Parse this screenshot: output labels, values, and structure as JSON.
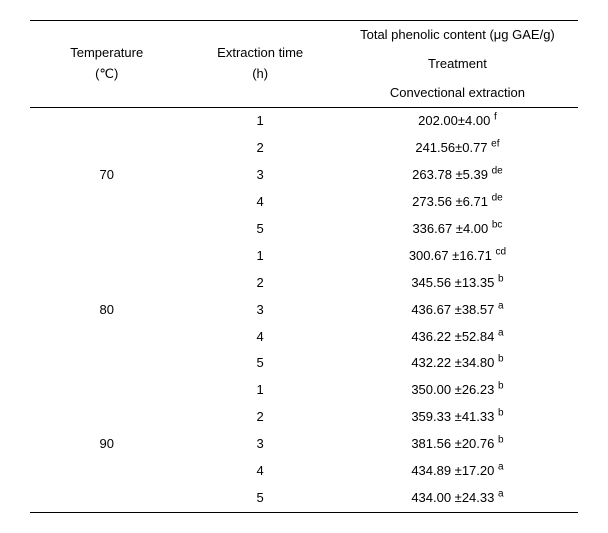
{
  "header": {
    "temp_label_line1": "Temperature",
    "temp_label_line2": "(℃)",
    "time_label_line1": "Extraction time",
    "time_label_line2": "(h)",
    "tpc_line1": "Total phenolic content (μg GAE/g)",
    "tpc_line2": "Treatment",
    "tpc_line3": "Convectional extraction"
  },
  "groups": [
    {
      "temp": "70",
      "rows": [
        {
          "time": "1",
          "value": "202.00±4.00",
          "sup": "f"
        },
        {
          "time": "2",
          "value": "241.56±0.77",
          "sup": "ef"
        },
        {
          "time": "3",
          "value": "263.78 ±5.39",
          "sup": "de"
        },
        {
          "time": "4",
          "value": "273.56 ±6.71",
          "sup": "de"
        },
        {
          "time": "5",
          "value": "336.67 ±4.00",
          "sup": "bc"
        }
      ]
    },
    {
      "temp": "80",
      "rows": [
        {
          "time": "1",
          "value": "300.67 ±16.71",
          "sup": "cd"
        },
        {
          "time": "2",
          "value": "345.56 ±13.35",
          "sup": "b"
        },
        {
          "time": "3",
          "value": "436.67 ±38.57",
          "sup": "a"
        },
        {
          "time": "4",
          "value": "436.22 ±52.84",
          "sup": "a"
        },
        {
          "time": "5",
          "value": "432.22 ±34.80",
          "sup": "b"
        }
      ]
    },
    {
      "temp": "90",
      "rows": [
        {
          "time": "1",
          "value": "350.00 ±26.23",
          "sup": "b"
        },
        {
          "time": "2",
          "value": "359.33 ±41.33",
          "sup": "b"
        },
        {
          "time": "3",
          "value": "381.56 ±20.76",
          "sup": "b"
        },
        {
          "time": "4",
          "value": "434.89 ±17.20",
          "sup": "a"
        },
        {
          "time": "5",
          "value": "434.00 ±24.33",
          "sup": "a"
        }
      ]
    }
  ],
  "style": {
    "font_family": "Arial, sans-serif",
    "base_fontsize": 13,
    "sup_fontsize": 10,
    "background_color": "#ffffff",
    "text_color": "#000000",
    "rule_color": "#000000",
    "outer_rule_width": 1.5,
    "inner_rule_width": 0.75,
    "col_widths_percent": [
      28,
      28,
      44
    ]
  }
}
